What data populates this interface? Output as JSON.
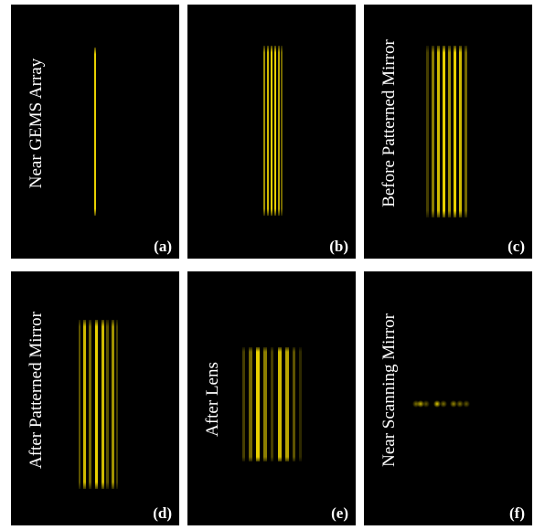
{
  "panels": [
    {
      "label": "(a)",
      "caption": "Near GEMS Array"
    },
    {
      "label": "(b)"
    },
    {
      "label": "(c)",
      "caption": "Before Patterned Mirror"
    },
    {
      "label": "(d)",
      "caption": "After Patterned Mirror"
    },
    {
      "label": "(e)",
      "caption": "After Lens"
    },
    {
      "label": "(f)",
      "caption": "Near Scanning Mirror"
    }
  ]
}
